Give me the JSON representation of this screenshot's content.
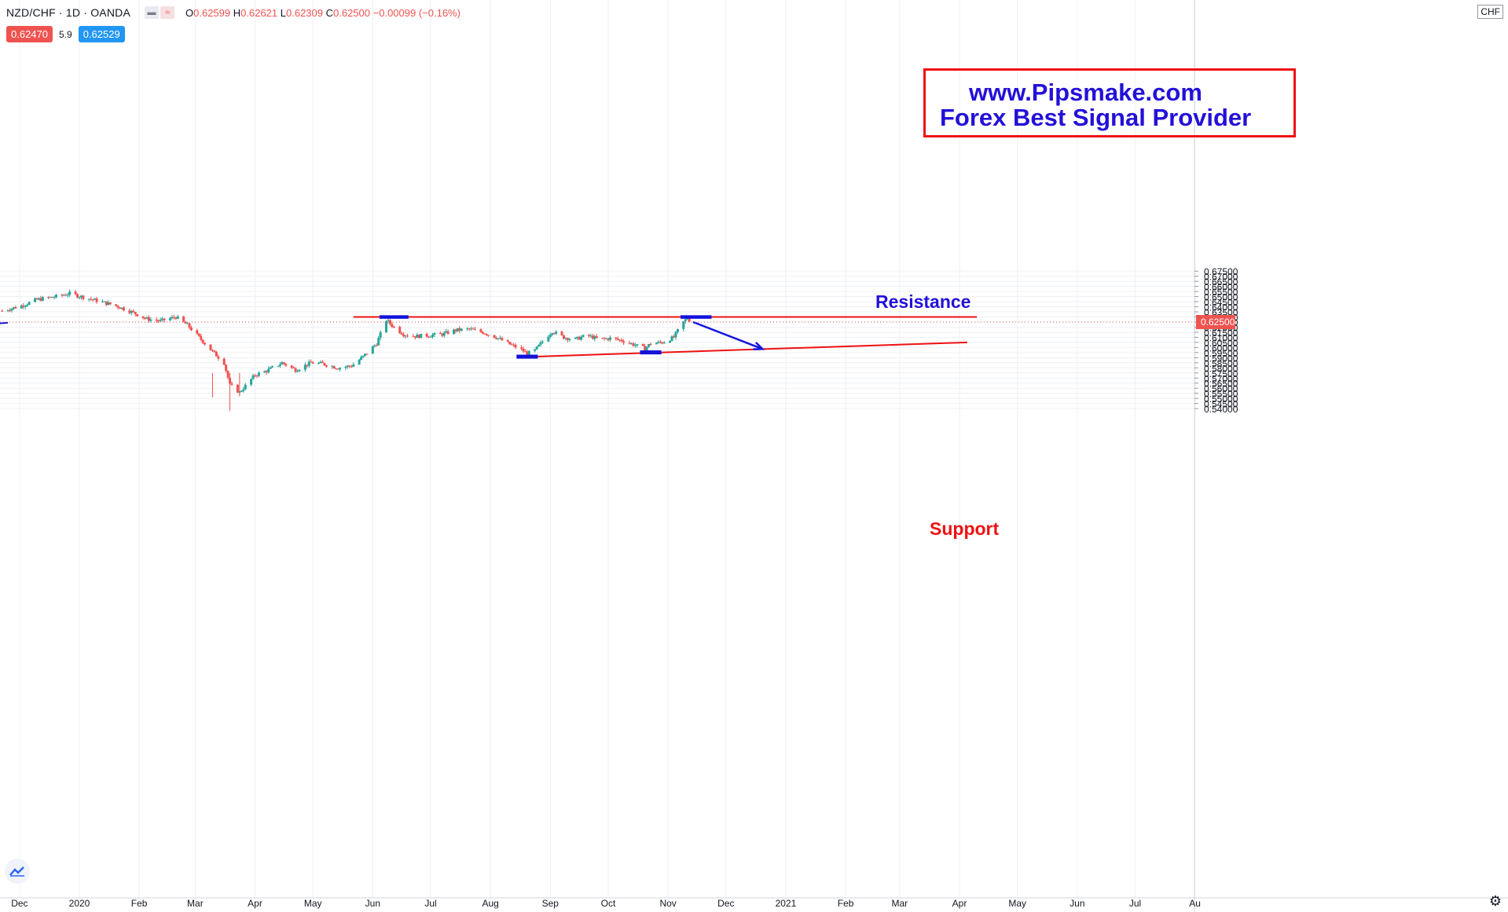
{
  "header": {
    "symbol": "NZD/CHF · 1D · OANDA",
    "toggle_icons": [
      "minus-icon",
      "wave-icon"
    ],
    "ohlc": {
      "o_label": "O",
      "o": "0.62599",
      "h_label": "H",
      "h": "0.62621",
      "l_label": "L",
      "l": "0.62309",
      "c_label": "C",
      "c": "0.62500",
      "change": "−0.00099 (−0.16%)"
    },
    "sell_price": "0.62470",
    "spread": "5.9",
    "buy_price": "0.62529"
  },
  "promo": {
    "line1": "www.Pipsmake.com",
    "line2": "Forex Best Signal Provider"
  },
  "annotations": {
    "resistance": "Resistance",
    "support": "Support"
  },
  "currency": "CHF",
  "colors": {
    "up": "#26a69a",
    "down": "#ef5350",
    "line": "#ee1111",
    "box": "#1010dd",
    "arrow": "#1515dd",
    "promo_text": "#2310d8",
    "grid": "#eef0f4"
  },
  "chart_data": {
    "type": "candlestick",
    "symbol": "NZD/CHF",
    "interval": "1D",
    "ylim": [
      0.538,
      0.68
    ],
    "xlim": [
      "2019-11-20",
      "2021-08-20"
    ],
    "y_ticks": [
      "0.67500",
      "0.67000",
      "0.66500",
      "0.66000",
      "0.65500",
      "0.65000",
      "0.64500",
      "0.64000",
      "0.63500",
      "0.63000",
      "0.62500",
      "0.62000",
      "0.61500",
      "0.61000",
      "0.60500",
      "0.60000",
      "0.59500",
      "0.59000",
      "0.58500",
      "0.58000",
      "0.57500",
      "0.57000",
      "0.56500",
      "0.56000",
      "0.55500",
      "0.55000",
      "0.54500",
      "0.54000"
    ],
    "x_ticks": [
      {
        "label": "Dec",
        "date": "2019-12-01"
      },
      {
        "label": "2020",
        "date": "2020-01-01"
      },
      {
        "label": "Feb",
        "date": "2020-02-01"
      },
      {
        "label": "Mar",
        "date": "2020-03-01"
      },
      {
        "label": "Apr",
        "date": "2020-04-01"
      },
      {
        "label": "May",
        "date": "2020-05-01"
      },
      {
        "label": "Jun",
        "date": "2020-06-01"
      },
      {
        "label": "Jul",
        "date": "2020-07-01"
      },
      {
        "label": "Aug",
        "date": "2020-08-01"
      },
      {
        "label": "Sep",
        "date": "2020-09-01"
      },
      {
        "label": "Oct",
        "date": "2020-10-01"
      },
      {
        "label": "Nov",
        "date": "2020-11-01"
      },
      {
        "label": "Dec",
        "date": "2020-12-01"
      },
      {
        "label": "2021",
        "date": "2021-01-01"
      },
      {
        "label": "Feb",
        "date": "2021-02-01"
      },
      {
        "label": "Mar",
        "date": "2021-03-01"
      },
      {
        "label": "Apr",
        "date": "2021-04-01"
      },
      {
        "label": "May",
        "date": "2021-05-01"
      },
      {
        "label": "Jun",
        "date": "2021-06-01"
      },
      {
        "label": "Jul",
        "date": "2021-07-01"
      },
      {
        "label": "Au",
        "date": "2021-08-01"
      }
    ],
    "last_price": {
      "label": "0.62500",
      "value": 0.625
    },
    "close_path": [
      [
        "2019-11-22",
        0.636
      ],
      [
        "2019-12-02",
        0.641
      ],
      [
        "2019-12-10",
        0.647
      ],
      [
        "2019-12-20",
        0.65
      ],
      [
        "2019-12-27",
        0.653
      ],
      [
        "2020-01-02",
        0.65
      ],
      [
        "2020-01-10",
        0.646
      ],
      [
        "2020-01-20",
        0.641
      ],
      [
        "2020-01-28",
        0.635
      ],
      [
        "2020-02-05",
        0.628
      ],
      [
        "2020-02-12",
        0.626
      ],
      [
        "2020-02-20",
        0.63
      ],
      [
        "2020-02-26",
        0.622
      ],
      [
        "2020-03-04",
        0.608
      ],
      [
        "2020-03-10",
        0.596
      ],
      [
        "2020-03-16",
        0.585
      ],
      [
        "2020-03-19",
        0.563
      ],
      [
        "2020-03-24",
        0.556
      ],
      [
        "2020-04-01",
        0.573
      ],
      [
        "2020-04-07",
        0.577
      ],
      [
        "2020-04-15",
        0.585
      ],
      [
        "2020-04-22",
        0.578
      ],
      [
        "2020-04-30",
        0.585
      ],
      [
        "2020-05-06",
        0.584
      ],
      [
        "2020-05-14",
        0.58
      ],
      [
        "2020-05-21",
        0.582
      ],
      [
        "2020-05-27",
        0.591
      ],
      [
        "2020-06-03",
        0.604
      ],
      [
        "2020-06-08",
        0.627
      ],
      [
        "2020-06-12",
        0.62
      ],
      [
        "2020-06-17",
        0.613
      ],
      [
        "2020-06-23",
        0.611
      ],
      [
        "2020-06-30",
        0.612
      ],
      [
        "2020-07-07",
        0.613
      ],
      [
        "2020-07-14",
        0.617
      ],
      [
        "2020-07-21",
        0.618
      ],
      [
        "2020-07-28",
        0.615
      ],
      [
        "2020-08-04",
        0.61
      ],
      [
        "2020-08-10",
        0.604
      ],
      [
        "2020-08-17",
        0.598
      ],
      [
        "2020-08-20",
        0.594
      ],
      [
        "2020-08-24",
        0.597
      ],
      [
        "2020-08-28",
        0.606
      ],
      [
        "2020-09-02",
        0.616
      ],
      [
        "2020-09-08",
        0.61
      ],
      [
        "2020-09-14",
        0.608
      ],
      [
        "2020-09-20",
        0.612
      ],
      [
        "2020-09-26",
        0.608
      ],
      [
        "2020-10-02",
        0.609
      ],
      [
        "2020-10-08",
        0.607
      ],
      [
        "2020-10-14",
        0.603
      ],
      [
        "2020-10-20",
        0.599
      ],
      [
        "2020-10-23",
        0.604
      ],
      [
        "2020-10-29",
        0.605
      ],
      [
        "2020-11-04",
        0.61
      ],
      [
        "2020-11-08",
        0.623
      ],
      [
        "2020-11-11",
        0.629
      ],
      [
        "2020-11-13",
        0.625
      ]
    ]
  },
  "drawings": {
    "resistance_level": 0.63,
    "support_line": [
      [
        "2020-08-15",
        0.5905
      ],
      [
        "2021-04-05",
        0.605
      ]
    ],
    "arrow": [
      [
        "2020-11-14",
        0.625
      ],
      [
        "2020-12-20",
        0.5985
      ]
    ],
    "boxes": [
      {
        "name": "resistance-box-jun",
        "from": "2020-06-05",
        "to": "2020-06-19",
        "lo": 0.6292,
        "hi": 0.6307
      },
      {
        "name": "resistance-box-nov",
        "from": "2020-11-08",
        "to": "2020-11-23",
        "lo": 0.6292,
        "hi": 0.6307
      },
      {
        "name": "support-box-aug",
        "from": "2020-08-15",
        "to": "2020-08-25",
        "lo": 0.59,
        "hi": 0.592
      },
      {
        "name": "support-box-oct",
        "from": "2020-10-18",
        "to": "2020-10-28",
        "lo": 0.5942,
        "hi": 0.5962
      }
    ]
  }
}
